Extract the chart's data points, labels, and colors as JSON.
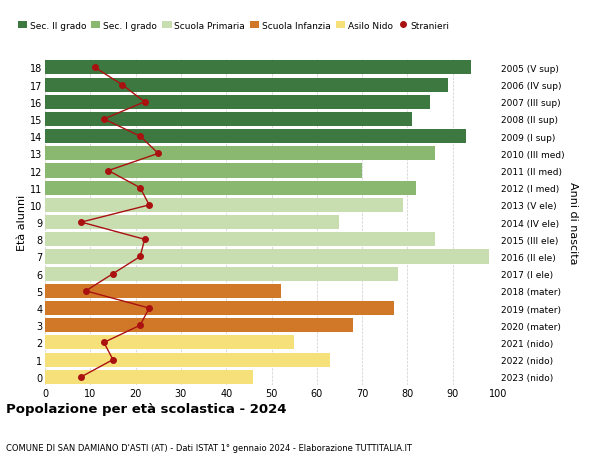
{
  "ages": [
    0,
    1,
    2,
    3,
    4,
    5,
    6,
    7,
    8,
    9,
    10,
    11,
    12,
    13,
    14,
    15,
    16,
    17,
    18
  ],
  "years_labels": [
    "2023 (nido)",
    "2022 (nido)",
    "2021 (nido)",
    "2020 (mater)",
    "2019 (mater)",
    "2018 (mater)",
    "2017 (I ele)",
    "2016 (II ele)",
    "2015 (III ele)",
    "2014 (IV ele)",
    "2013 (V ele)",
    "2012 (I med)",
    "2011 (II med)",
    "2010 (III med)",
    "2009 (I sup)",
    "2008 (II sup)",
    "2007 (III sup)",
    "2006 (IV sup)",
    "2005 (V sup)"
  ],
  "bar_values": [
    46,
    63,
    55,
    68,
    77,
    52,
    78,
    98,
    86,
    65,
    79,
    82,
    70,
    86,
    93,
    81,
    85,
    89,
    94
  ],
  "stranieri_values": [
    8,
    15,
    13,
    21,
    23,
    9,
    15,
    21,
    22,
    8,
    23,
    21,
    14,
    25,
    21,
    13,
    22,
    17,
    11
  ],
  "bar_colors": {
    "nido": "#f5e07a",
    "mater": "#d07828",
    "ele": "#c8ddb0",
    "med": "#8ab870",
    "sup": "#3d7840"
  },
  "stranieri_color": "#aa1111",
  "legend_labels": [
    "Sec. II grado",
    "Sec. I grado",
    "Scuola Primaria",
    "Scuola Infanzia",
    "Asilo Nido",
    "Stranieri"
  ],
  "legend_colors": [
    "#3d7840",
    "#8ab870",
    "#c8ddb0",
    "#d07828",
    "#f5e07a",
    "#aa1111"
  ],
  "ylabel_left": "Età alunni",
  "ylabel_right": "Anni di nascita",
  "title": "Popolazione per età scolastica - 2024",
  "subtitle": "COMUNE DI SAN DAMIANO D'ASTI (AT) - Dati ISTAT 1° gennaio 2024 - Elaborazione TUTTITALIA.IT",
  "xlim": [
    0,
    100
  ],
  "xticks": [
    0,
    10,
    20,
    30,
    40,
    50,
    60,
    70,
    80,
    90,
    100
  ],
  "background_color": "#ffffff",
  "bar_height": 0.82,
  "grid_color": "#cccccc"
}
